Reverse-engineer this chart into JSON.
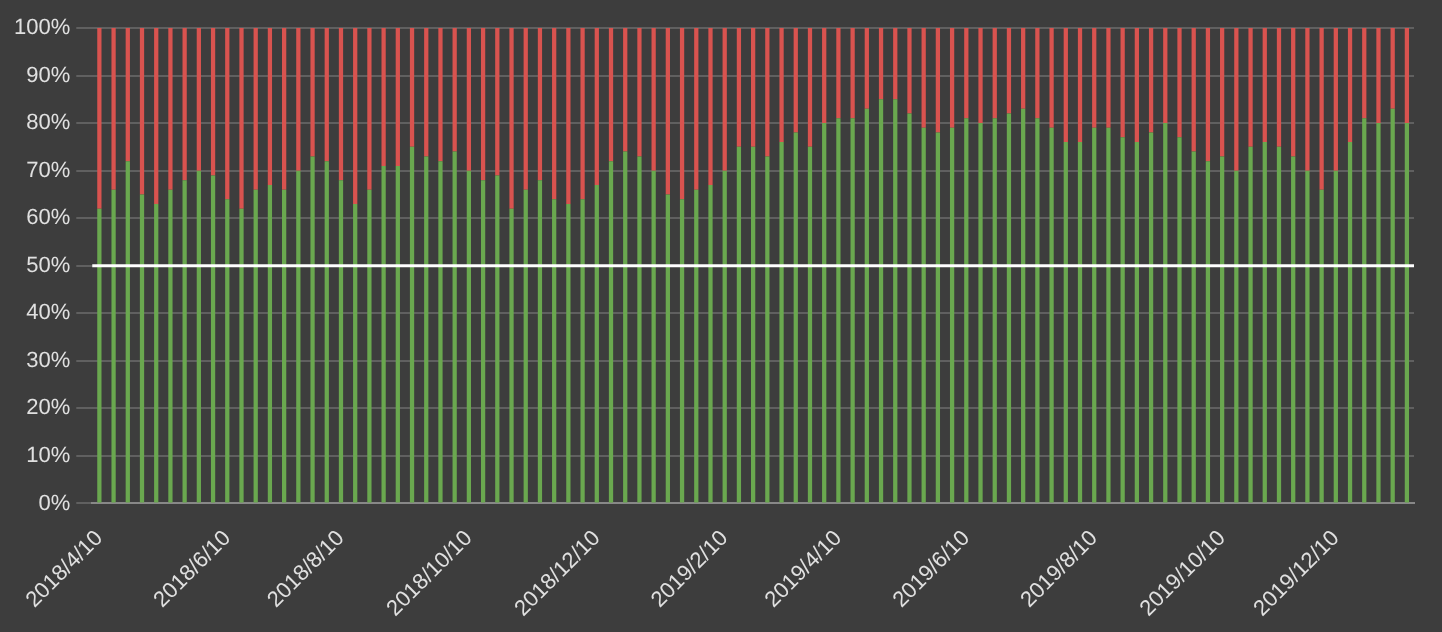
{
  "chart_data": {
    "type": "bar",
    "stacked": true,
    "categories": [
      "2018/4/10",
      null,
      null,
      null,
      null,
      null,
      null,
      null,
      null,
      "2018/6/10",
      null,
      null,
      null,
      null,
      null,
      null,
      null,
      "2018/8/10",
      null,
      null,
      null,
      null,
      null,
      null,
      null,
      null,
      "2018/10/10",
      null,
      null,
      null,
      null,
      null,
      null,
      null,
      null,
      "2018/12/10",
      null,
      null,
      null,
      null,
      null,
      null,
      null,
      null,
      "2019/2/10",
      null,
      null,
      null,
      null,
      null,
      null,
      null,
      "2019/4/10",
      null,
      null,
      null,
      null,
      null,
      null,
      null,
      null,
      "2019/6/10",
      null,
      null,
      null,
      null,
      null,
      null,
      null,
      null,
      "2019/8/10",
      null,
      null,
      null,
      null,
      null,
      null,
      null,
      null,
      "2019/10/10",
      null,
      null,
      null,
      null,
      null,
      null,
      null,
      "2019/12/10",
      null,
      null,
      null,
      null,
      null
    ],
    "series": [
      {
        "color": "#6aa84f",
        "values": [
          62,
          66,
          72,
          65,
          63,
          66,
          68,
          70,
          69,
          64,
          62,
          66,
          67,
          66,
          70,
          73,
          72,
          68,
          63,
          66,
          71,
          71,
          75,
          73,
          72,
          74,
          70,
          68,
          69,
          62,
          66,
          68,
          64,
          63,
          64,
          67,
          72,
          74,
          73,
          70,
          65,
          64,
          66,
          67,
          70,
          75,
          75,
          73,
          76,
          78,
          75,
          80,
          81,
          81,
          83,
          85,
          85,
          82,
          79,
          78,
          79,
          81,
          80,
          81,
          82,
          83,
          81,
          79,
          76,
          76,
          79,
          79,
          77,
          76,
          78,
          80,
          77,
          74,
          72,
          73,
          70,
          75,
          76,
          75,
          73,
          70,
          66,
          70,
          76,
          81,
          80,
          83,
          80
        ]
      },
      {
        "color": "#d9534f",
        "values": [
          38,
          34,
          28,
          35,
          37,
          34,
          32,
          30,
          31,
          36,
          38,
          34,
          33,
          34,
          30,
          27,
          28,
          32,
          37,
          34,
          29,
          29,
          25,
          27,
          28,
          26,
          30,
          32,
          31,
          38,
          34,
          32,
          36,
          37,
          36,
          33,
          28,
          26,
          27,
          30,
          35,
          36,
          34,
          33,
          30,
          25,
          25,
          27,
          24,
          22,
          25,
          20,
          19,
          19,
          17,
          15,
          15,
          18,
          21,
          22,
          21,
          19,
          20,
          19,
          18,
          17,
          19,
          21,
          24,
          24,
          21,
          21,
          23,
          24,
          22,
          20,
          23,
          26,
          28,
          27,
          30,
          25,
          24,
          25,
          27,
          30,
          34,
          30,
          24,
          19,
          20,
          17,
          20
        ]
      }
    ],
    "ylim": [
      0,
      100
    ],
    "yticks": [
      {
        "value": 0,
        "label": "0%"
      },
      {
        "value": 10,
        "label": "10%"
      },
      {
        "value": 20,
        "label": "20%"
      },
      {
        "value": 30,
        "label": "30%"
      },
      {
        "value": 40,
        "label": "40%"
      },
      {
        "value": 50,
        "label": "50%"
      },
      {
        "value": 60,
        "label": "60%"
      },
      {
        "value": 70,
        "label": "70%"
      },
      {
        "value": 80,
        "label": "80%"
      },
      {
        "value": 90,
        "label": "90%"
      },
      {
        "value": 100,
        "label": "100%"
      }
    ],
    "grid": "y",
    "legend": false,
    "ref_lines": [
      {
        "axis": "y",
        "value": 50,
        "color": "#ffffff"
      }
    ]
  }
}
